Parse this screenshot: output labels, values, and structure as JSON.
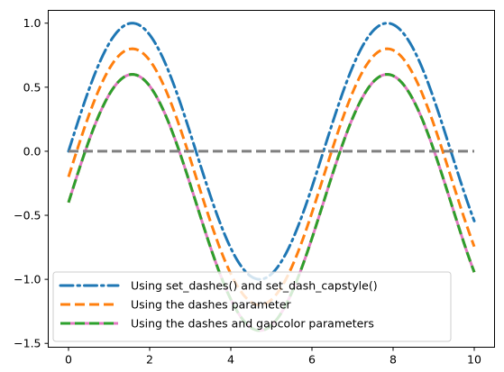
{
  "chart_data": {
    "type": "line",
    "title": "",
    "xlabel": "",
    "ylabel": "",
    "xlim": [
      -0.5,
      10.5
    ],
    "ylim": [
      -1.53,
      1.1
    ],
    "grid": false,
    "legend_location": "lower-left",
    "x_ticks": [
      0,
      2,
      4,
      6,
      8,
      10
    ],
    "x_tick_labels": [
      "0",
      "2",
      "4",
      "6",
      "8",
      "10"
    ],
    "y_ticks": [
      1.0,
      0.5,
      0.0,
      -0.5,
      -1.0,
      -1.5
    ],
    "y_tick_labels": [
      "1.0",
      "0.5",
      "0.0",
      "−0.5",
      "−1.0",
      "−1.5"
    ],
    "series": [
      {
        "name": "Using set_dashes() and set_dash_capstyle()",
        "function": "sin(x)",
        "x_range": [
          0,
          10
        ],
        "color": "#1f77b4",
        "dash": "dash-dot"
      },
      {
        "function": "sin(x) - 0.2",
        "x_range": [
          0,
          10
        ],
        "color": "#ff7f0e",
        "dash": "dashed"
      },
      {
        "name": "Using the dashes parameter",
        "function": "sin(x) - 0.4",
        "x_range": [
          0,
          10
        ],
        "color": "#ff7f0e",
        "dash": "dashed"
      },
      {
        "name": "Using the dashes and gapcolor parameters",
        "function": "sin(x) - 0.4",
        "x_range": [
          0,
          10
        ],
        "color": "#2ca02c",
        "gapcolor": "#e377c2",
        "dash": "dashed"
      },
      {
        "function": "0",
        "x_range": [
          0,
          10
        ],
        "color": "#7f7f7f",
        "dash": "dashed"
      }
    ]
  }
}
